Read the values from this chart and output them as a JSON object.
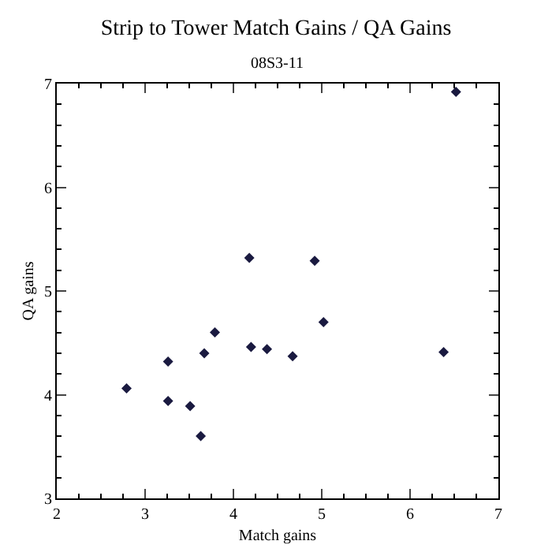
{
  "chart_data": {
    "type": "scatter",
    "title": "Strip to Tower Match Gains / QA Gains",
    "subtitle": "08S3-11",
    "xlabel": "Match gains",
    "ylabel": "QA gains",
    "x": [
      2.79,
      3.26,
      3.26,
      3.51,
      3.63,
      3.67,
      3.79,
      4.18,
      4.2,
      4.38,
      4.67,
      4.92,
      5.02,
      6.38,
      6.52
    ],
    "series": [
      {
        "color": "#1a1a40",
        "values": [
          4.06,
          4.32,
          3.94,
          3.89,
          3.6,
          4.4,
          4.6,
          5.32,
          4.46,
          4.44,
          4.37,
          5.29,
          4.7,
          4.41,
          6.92
        ]
      }
    ],
    "xlim": [
      2,
      7
    ],
    "xticks": [
      2,
      3,
      4,
      5,
      6,
      7
    ],
    "ylim": [
      3,
      7
    ],
    "yticks": [
      3,
      4,
      5,
      6,
      7
    ],
    "grid": false,
    "marker": "diamond"
  }
}
